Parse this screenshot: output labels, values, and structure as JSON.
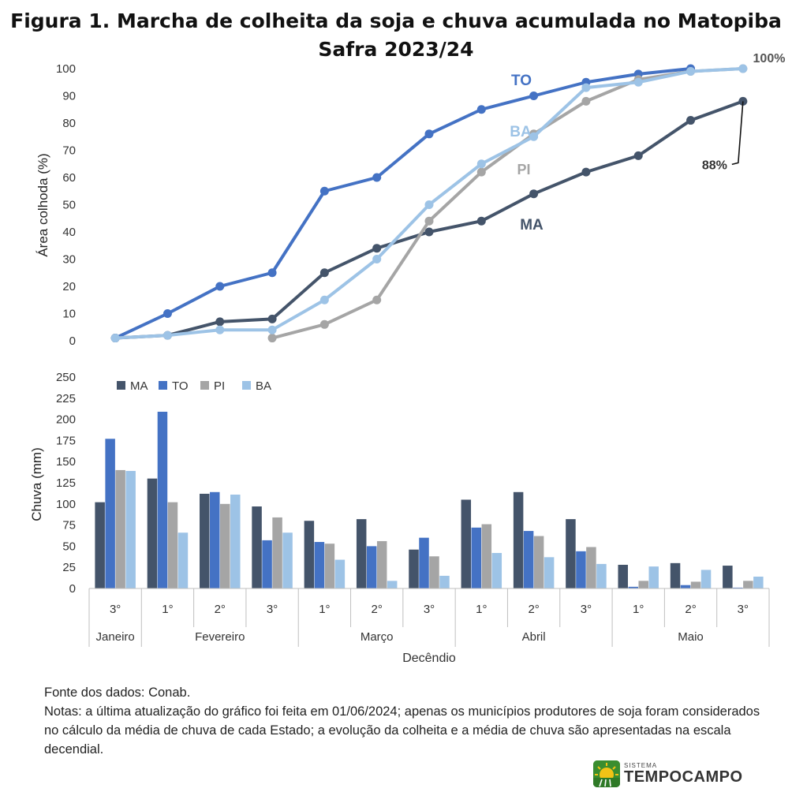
{
  "figure": {
    "title_line1": "Figura 1. Marcha de colheita da soja e chuva acumulada no Matopiba",
    "title_line2": "Safra 2023/24"
  },
  "notes": {
    "source": "Fonte dos dados: Conab.",
    "text": "Notas: a última atualização do gráfico foi feita em 01/06/2024; apenas os municípios produtores de soja foram considerados no cálculo da média de chuva de cada Estado; a evolução da colheita e a média de chuva são apresentadas na escala decendial."
  },
  "logo": {
    "small": "SISTEMA",
    "big": "TEMPOCAMPO"
  },
  "chart_data": [
    {
      "type": "line",
      "ylabel": "Área colhoda  (%)",
      "ylim": [
        0,
        100
      ],
      "yticks": [
        0,
        10,
        20,
        30,
        40,
        50,
        60,
        70,
        80,
        90,
        100
      ],
      "grid": false,
      "x_count": 13,
      "series": [
        {
          "name": "TO",
          "color": "#4472C4",
          "values": [
            1,
            10,
            20,
            25,
            55,
            60,
            76,
            85,
            90,
            95,
            98,
            100,
            null
          ]
        },
        {
          "name": "MA",
          "color": "#44546A",
          "values": [
            1,
            2,
            7,
            8,
            25,
            34,
            40,
            44,
            54,
            62,
            68,
            81,
            88
          ]
        },
        {
          "name": "PI",
          "color": "#A5A5A5",
          "values": [
            null,
            null,
            null,
            1,
            6,
            15,
            44,
            62,
            76,
            88,
            96,
            99,
            100
          ]
        },
        {
          "name": "BA",
          "color": "#9DC3E6",
          "values": [
            1,
            2,
            4,
            4,
            15,
            30,
            50,
            65,
            75,
            93,
            95,
            99,
            100
          ]
        }
      ],
      "annotations": [
        {
          "text": "100%",
          "series": "PI",
          "index": 12
        },
        {
          "text": "88%",
          "series": "MA",
          "index": 12
        }
      ]
    },
    {
      "type": "bar",
      "ylabel": "Chuva (mm)",
      "xlabel": "Decêndio",
      "ylim": [
        0,
        250
      ],
      "yticks": [
        0,
        25,
        50,
        75,
        100,
        125,
        150,
        175,
        200,
        225,
        250
      ],
      "grid": false,
      "legend": "top-left",
      "categories": [
        "3°",
        "1°",
        "2°",
        "3°",
        "1°",
        "2°",
        "3°",
        "1°",
        "2°",
        "3°",
        "1°",
        "2°",
        "3°"
      ],
      "groups": [
        {
          "label": "Janeiro",
          "span": 1
        },
        {
          "label": "Fevereiro",
          "span": 3
        },
        {
          "label": "Março",
          "span": 3
        },
        {
          "label": "Abril",
          "span": 3
        },
        {
          "label": "Maio",
          "span": 3
        }
      ],
      "series": [
        {
          "name": "MA",
          "color": "#44546A",
          "values": [
            102,
            130,
            112,
            97,
            80,
            82,
            46,
            105,
            114,
            82,
            28,
            30,
            27
          ]
        },
        {
          "name": "TO",
          "color": "#4472C4",
          "values": [
            177,
            209,
            114,
            57,
            55,
            50,
            60,
            72,
            68,
            44,
            2,
            4,
            1
          ]
        },
        {
          "name": "PI",
          "color": "#A5A5A5",
          "values": [
            140,
            102,
            100,
            84,
            53,
            56,
            38,
            76,
            62,
            49,
            9,
            8,
            9
          ]
        },
        {
          "name": "BA",
          "color": "#9DC3E6",
          "values": [
            139,
            66,
            111,
            66,
            34,
            9,
            15,
            42,
            37,
            29,
            26,
            22,
            14
          ]
        }
      ]
    }
  ]
}
